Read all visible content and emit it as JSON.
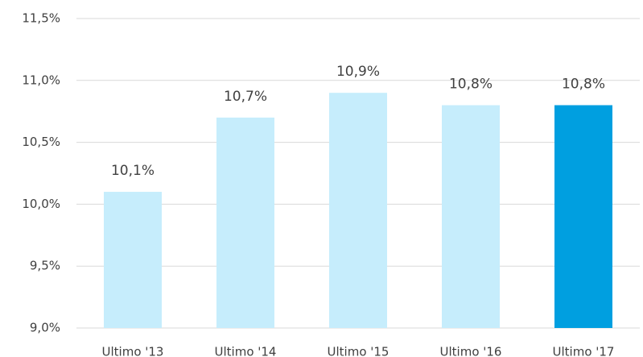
{
  "chart_data": {
    "type": "bar",
    "categories": [
      "Ultimo '13",
      "Ultimo '14",
      "Ultimo '15",
      "Ultimo '16",
      "Ultimo '17"
    ],
    "values": [
      10.1,
      10.7,
      10.9,
      10.8,
      10.8
    ],
    "value_labels": [
      "10,1%",
      "10,7%",
      "10,9%",
      "10,8%",
      "10,8%"
    ],
    "colors": [
      "#c6edfc",
      "#c6edfc",
      "#c6edfc",
      "#c6edfc",
      "#009fe0"
    ],
    "ylim": [
      9,
      11.5
    ],
    "yticks": [
      {
        "value": 9,
        "label": "9,0%"
      },
      {
        "value": 9.5,
        "label": "9,5%"
      },
      {
        "value": 10,
        "label": "10,0%"
      },
      {
        "value": 10.5,
        "label": "10,5%"
      },
      {
        "value": 11,
        "label": "11,0%"
      },
      {
        "value": 11.5,
        "label": "11,5%"
      }
    ],
    "grid": true
  }
}
